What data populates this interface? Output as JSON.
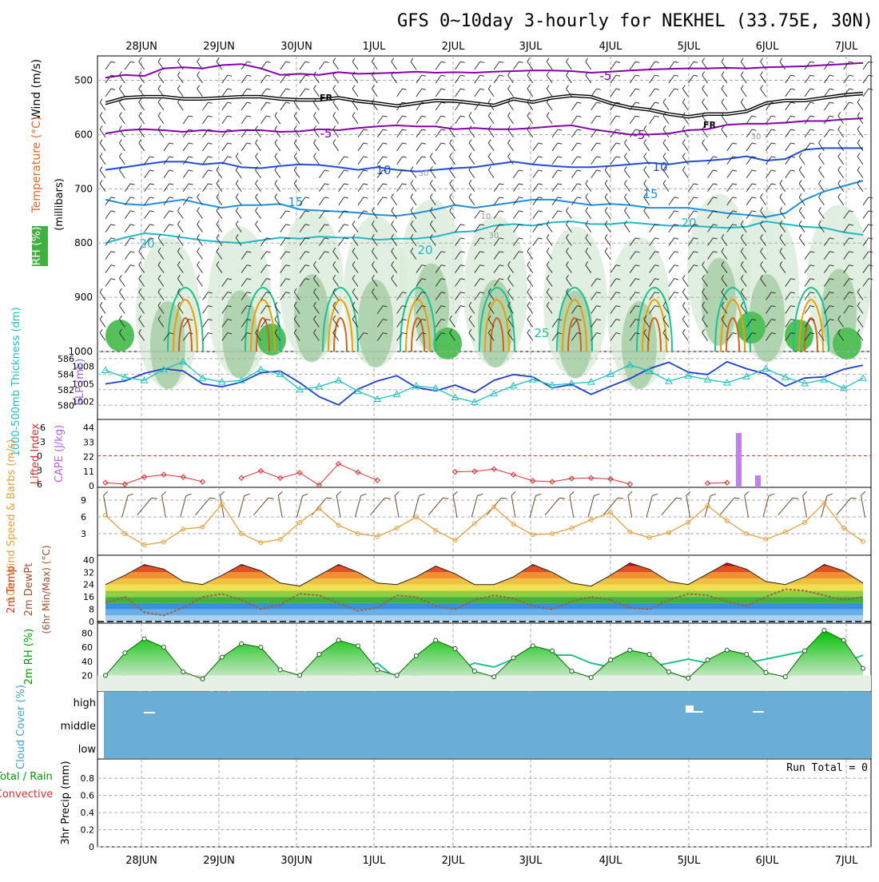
{
  "title": "GFS 0~10day 3-hourly for NEKHEL (33.75E, 30N)",
  "colors": {
    "grid": "#aaaaaa",
    "purple": "#8800aa",
    "fr": "#000000",
    "blue": "#1e4fd8",
    "skyblue": "#1e90e0",
    "teal": "#20b8c8",
    "green": "#20c090",
    "orange": "#e8a000",
    "darkorange": "#d86010",
    "slp": "#1f3fcc",
    "thickness": "#20c0c0",
    "li": "#d83030",
    "cape": "#c080f0",
    "wind10": "#e8a040",
    "barbs10": "#6b4a2a",
    "dewpt": "#a06040",
    "rh": "#00a000",
    "cloud": "#6aaed6",
    "rhshade": "#8fbf8f"
  },
  "days": [
    "28JUN",
    "29JUN",
    "30JUN",
    "1JUL",
    "2JUL",
    "3JUL",
    "4JUL",
    "5JUL",
    "6JUL",
    "7JUL"
  ],
  "chart_data": [
    {
      "type": "contour",
      "name": "upper-air",
      "ylabels": [
        "Wind (m/s)",
        "Temperature (°C)",
        "RH (%)"
      ],
      "yunit": "(millibars)",
      "yticks": [
        500,
        600,
        700,
        800,
        900,
        1000
      ],
      "ylim": [
        1000,
        455
      ],
      "contour_labels": [
        "FR",
        "FR",
        "-5",
        "-5",
        "-5",
        "10",
        "10",
        "15",
        "15",
        "20",
        "20",
        "20",
        "25",
        "30",
        "30",
        "10",
        "30"
      ],
      "isotherms": [
        {
          "name": "-5 upper",
          "level": -5,
          "p": [
            495,
            490,
            492,
            478,
            476,
            478,
            472,
            470,
            478,
            490,
            488,
            490,
            485,
            488,
            487,
            486,
            484,
            486,
            485,
            486,
            484,
            483,
            482,
            482,
            483,
            486,
            484,
            482,
            480,
            479,
            478,
            478,
            477,
            478,
            476,
            475,
            474,
            472,
            470,
            468
          ]
        },
        {
          "name": "FR",
          "level": 0,
          "p": [
            540,
            530,
            528,
            528,
            532,
            532,
            530,
            528,
            528,
            532,
            534,
            534,
            530,
            536,
            540,
            545,
            540,
            535,
            536,
            540,
            544,
            532,
            538,
            530,
            526,
            528,
            540,
            548,
            552,
            560,
            565,
            560,
            560,
            555,
            540,
            535,
            535,
            530,
            525,
            522
          ]
        },
        {
          "name": "-5 lower",
          "level": -5,
          "p": [
            598,
            592,
            590,
            592,
            595,
            592,
            595,
            592,
            592,
            595,
            594,
            590,
            592,
            588,
            585,
            583,
            585,
            585,
            590,
            588,
            590,
            590,
            588,
            585,
            583,
            590,
            595,
            600,
            600,
            598,
            592,
            590,
            582,
            580,
            580,
            578,
            575,
            575,
            572,
            570
          ]
        },
        {
          "name": "10",
          "level": 10,
          "p": [
            665,
            660,
            655,
            650,
            650,
            655,
            652,
            660,
            662,
            658,
            655,
            656,
            660,
            665,
            660,
            665,
            668,
            665,
            662,
            660,
            655,
            650,
            655,
            658,
            660,
            660,
            658,
            655,
            652,
            655,
            650,
            648,
            645,
            640,
            648,
            645,
            628,
            625,
            625,
            625
          ]
        },
        {
          "name": "15",
          "level": 15,
          "p": [
            720,
            728,
            730,
            725,
            720,
            728,
            735,
            730,
            730,
            728,
            738,
            740,
            742,
            744,
            748,
            750,
            745,
            738,
            730,
            735,
            730,
            725,
            720,
            720,
            725,
            730,
            728,
            730,
            735,
            735,
            735,
            740,
            745,
            748,
            752,
            745,
            720,
            705,
            695,
            685
          ]
        },
        {
          "name": "20",
          "level": 20,
          "p": [
            800,
            790,
            782,
            785,
            790,
            795,
            798,
            800,
            795,
            790,
            792,
            788,
            790,
            790,
            794,
            792,
            792,
            788,
            780,
            778,
            768,
            765,
            768,
            762,
            760,
            765,
            765,
            762,
            765,
            768,
            768,
            770,
            772,
            770,
            760,
            765,
            770,
            772,
            780,
            785
          ]
        }
      ],
      "note": "shaded RH (%) and wind barbs across levels"
    },
    {
      "type": "line",
      "name": "slp-thickness",
      "ylabels": [
        "1000-500mb Thickness (dm)",
        "SLP (mb)"
      ],
      "left_ticks": [
        580,
        582,
        584,
        586
      ],
      "right_ticks": [
        1002,
        1005,
        1008
      ],
      "series": [
        {
          "name": "SLP (mb)",
          "values": [
            1005.0,
            1005.5,
            1006.8,
            1007.6,
            1007.2,
            1005.0,
            1004.5,
            1005.3,
            1006.9,
            1007.2,
            1005.2,
            1002.8,
            1001.4,
            1004.1,
            1005.5,
            1006.4,
            1004.4,
            1003.8,
            1004.8,
            1003.5,
            1005.6,
            1006.6,
            1006.2,
            1004.3,
            1004.9,
            1003.2,
            1004.6,
            1005.9,
            1007.6,
            1008.7,
            1007.0,
            1006.6,
            1008.8,
            1007.6,
            1006.7,
            1004.6,
            1006.0,
            1006.2,
            1007.5,
            1008.2
          ]
        },
        {
          "name": "1000-500mb Thickness (dm)",
          "values": [
            584.5,
            583.6,
            583.2,
            584.6,
            585.6,
            583.5,
            583.0,
            583.2,
            584.6,
            584.0,
            582.0,
            582.4,
            583.2,
            581.8,
            580.8,
            581.4,
            582.5,
            582.2,
            581.0,
            580.4,
            581.5,
            582.5,
            583.3,
            582.6,
            582.8,
            583.0,
            584.0,
            585.2,
            584.4,
            583.1,
            583.8,
            583.3,
            582.9,
            583.7,
            584.7,
            583.6,
            582.8,
            583.3,
            582.2,
            583.5
          ]
        }
      ]
    },
    {
      "type": "line+bar",
      "name": "li-cape",
      "ylabels": [
        "Lifted Index",
        "CAPE (J/kg)"
      ],
      "left_ticks": [
        "-6",
        "-3",
        "0",
        "3",
        "6"
      ],
      "right_ticks": [
        "0",
        "11",
        "22",
        "33",
        "44"
      ],
      "series": [
        {
          "name": "Lifted Index",
          "values": [
            5.7,
            6.0,
            4.5,
            4.0,
            4.5,
            5.5,
            null,
            4.7,
            3.2,
            4.7,
            3.6,
            6.2,
            1.7,
            3.5,
            5.2,
            null,
            null,
            null,
            3.4,
            3.3,
            2.8,
            4.0,
            5.3,
            5.5,
            4.8,
            4.7,
            4.9,
            6.0,
            null,
            null,
            null,
            5.8,
            5.7,
            null,
            null,
            null,
            null,
            null,
            null,
            null
          ]
        },
        {
          "name": "CAPE (J/kg)",
          "bars": [
            {
              "day": "5JUL",
              "value": 41
            },
            {
              "day": "5JUL-6JUL",
              "value": 9
            }
          ]
        }
      ]
    },
    {
      "type": "line",
      "name": "wind10m",
      "ylabels": [
        "10m Wind Speed & Barbs (m/s)"
      ],
      "yticks": [
        3,
        6,
        9
      ],
      "series": [
        {
          "name": "10m Wind Speed",
          "values": [
            6.3,
            3.0,
            1.0,
            1.5,
            3.8,
            4.2,
            8.3,
            3.0,
            1.4,
            2.0,
            5.0,
            7.5,
            4.5,
            3.0,
            2.5,
            4.0,
            6.0,
            3.6,
            1.8,
            4.8,
            7.8,
            4.7,
            2.8,
            3.0,
            4.0,
            5.5,
            6.8,
            3.3,
            2.3,
            3.2,
            5.0,
            8.0,
            5.3,
            3.0,
            2.0,
            3.3,
            5.0,
            8.5,
            4.0,
            1.6
          ]
        }
      ]
    },
    {
      "type": "area+line",
      "name": "temp-dewpt",
      "ylabels": [
        "2m Temp",
        "2m DewPt",
        "(6hr Min/Max) (°C)"
      ],
      "yticks": [
        0,
        8,
        16,
        24,
        32,
        40
      ],
      "series": [
        {
          "name": "2m Temp",
          "values": [
            24,
            30,
            37,
            34,
            26,
            24,
            30,
            37,
            33,
            25,
            23,
            30,
            37,
            32,
            25,
            24,
            29,
            36,
            31,
            24,
            24,
            29,
            37,
            32,
            25,
            23,
            30,
            38,
            34,
            26,
            24,
            31,
            38,
            34,
            26,
            24,
            29,
            37,
            33,
            25
          ]
        },
        {
          "name": "2m DewPt",
          "values": [
            12,
            16,
            6,
            4,
            9,
            16,
            18,
            14,
            8,
            11,
            18,
            17,
            12,
            7,
            9,
            17,
            16,
            10,
            8,
            14,
            17,
            15,
            10,
            8,
            13,
            16,
            14,
            9,
            8,
            14,
            18,
            17,
            13,
            10,
            16,
            21,
            20,
            17,
            14,
            16
          ]
        }
      ]
    },
    {
      "type": "area",
      "name": "rh2m",
      "ylabels": [
        "2m RH (%)"
      ],
      "yticks": [
        20,
        40,
        60,
        80
      ],
      "series": [
        {
          "name": "2m RH",
          "values": [
            20,
            52,
            72,
            60,
            25,
            15,
            46,
            65,
            60,
            28,
            20,
            50,
            70,
            62,
            28,
            20,
            48,
            70,
            58,
            26,
            18,
            45,
            62,
            55,
            26,
            17,
            42,
            56,
            50,
            25,
            16,
            42,
            56,
            50,
            24,
            18,
            55,
            84,
            70,
            30
          ]
        }
      ]
    },
    {
      "type": "area",
      "name": "cloud",
      "ylabels": [
        "Cloud Cover (%)"
      ],
      "levels": [
        "high",
        "middle",
        "low"
      ]
    },
    {
      "type": "bar",
      "name": "precip",
      "ylabels": [
        "Total / Rain",
        "Convective",
        "3hr Precip (mm)"
      ],
      "yticks": [
        "0",
        "0.2",
        "0.4",
        "0.6",
        "0.8"
      ],
      "run_total": "Run Total = 0",
      "values": []
    }
  ]
}
